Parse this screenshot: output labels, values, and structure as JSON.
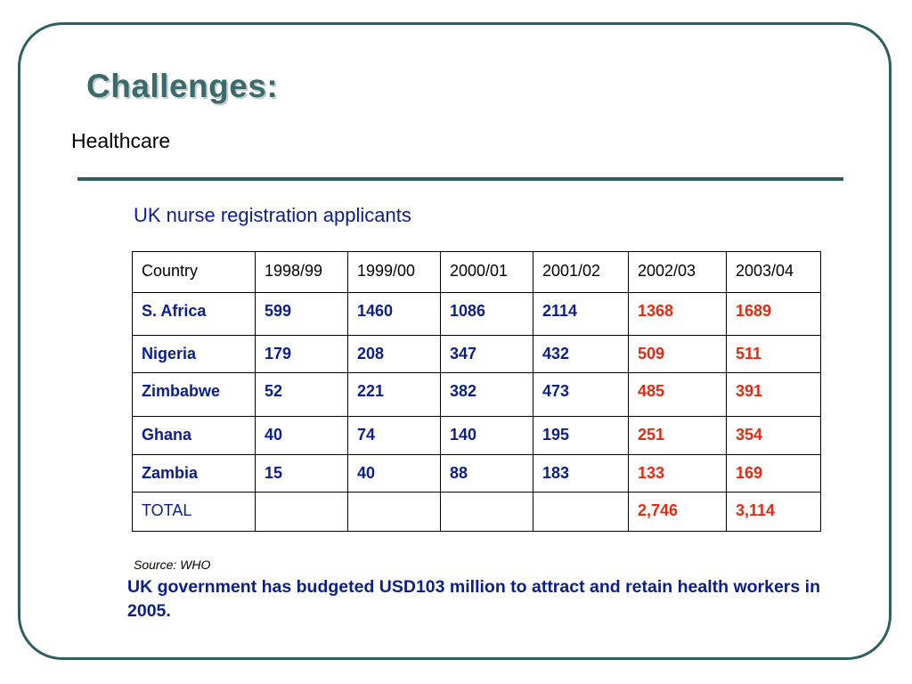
{
  "title": "Challenges:",
  "subtitle": "Healthcare",
  "table_caption": "UK nurse registration applicants",
  "table": {
    "headers": [
      "Country",
      "1998/99",
      "1999/00",
      "2000/01",
      "2001/02",
      "2002/03",
      "2003/04"
    ],
    "rows": [
      [
        "S. Africa",
        "599",
        "1460",
        "1086",
        "2114",
        "1368",
        "1689"
      ],
      [
        "Nigeria",
        "179",
        "208",
        "347",
        "432",
        "509",
        "511"
      ],
      [
        "Zimbabwe",
        "52",
        "221",
        "382",
        "473",
        "485",
        "391"
      ],
      [
        "Ghana",
        "40",
        "74",
        "140",
        "195",
        "251",
        "354"
      ],
      [
        "Zambia",
        "15",
        "40",
        "88",
        "183",
        "133",
        "169"
      ],
      [
        "TOTAL",
        "",
        "",
        "",
        "",
        "2,746",
        "3,114"
      ]
    ]
  },
  "source": "Source: WHO",
  "note": "UK government has budgeted USD103 million to attract and retain health workers in 2005.",
  "colors": {
    "frame": "#2f5f62",
    "title": "#3b6a6e",
    "text_blue": "#0b1e8e",
    "text_red": "#e8290f"
  }
}
